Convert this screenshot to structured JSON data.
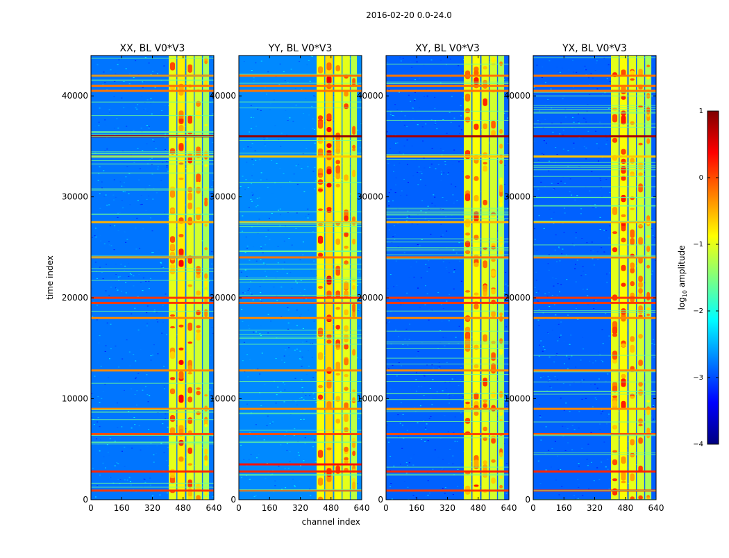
{
  "figure": {
    "suptitle": "2016-02-20 0.0-24.0",
    "colors": {
      "background": "#ffffff",
      "axis": "#000000",
      "cmap": [
        "#00007f",
        "#0000ff",
        "#007fff",
        "#00ffff",
        "#7fff7f",
        "#ffff00",
        "#ff7f00",
        "#ff0000",
        "#7f0000"
      ]
    }
  },
  "chart_data": [
    {
      "type": "heatmap",
      "title": "XX, BL V0*V3",
      "xlabel": "",
      "ylabel": "time index",
      "xlim": [
        0,
        640
      ],
      "ylim": [
        0,
        44000
      ],
      "xticks": [
        0,
        160,
        320,
        480,
        640
      ],
      "yticks": [
        0,
        10000,
        20000,
        30000,
        40000
      ],
      "background_level": -2.8,
      "bright_channel_bands": [
        [
          405,
          445,
          -1.0
        ],
        [
          450,
          490,
          -0.8
        ],
        [
          497,
          535,
          -1.0
        ],
        [
          540,
          578,
          -1.1
        ],
        [
          583,
          615,
          -1.3
        ]
      ],
      "flagged_time_rows": [
        [
          900,
          0.1
        ],
        [
          2800,
          0.2
        ],
        [
          6500,
          0.0
        ],
        [
          9000,
          -0.3
        ],
        [
          12800,
          -0.3
        ],
        [
          18000,
          -0.3
        ],
        [
          19500,
          0.1
        ],
        [
          20000,
          0.1
        ],
        [
          24000,
          -0.2
        ],
        [
          27500,
          -0.5
        ],
        [
          34000,
          -0.6
        ],
        [
          36000,
          0.8
        ],
        [
          40500,
          -0.2
        ],
        [
          41000,
          -0.2
        ],
        [
          42000,
          -0.2
        ]
      ]
    },
    {
      "type": "heatmap",
      "title": "YY, BL V0*V3",
      "xlabel": "channel index",
      "ylabel": "",
      "xlim": [
        0,
        640
      ],
      "ylim": [
        0,
        44000
      ],
      "xticks": [
        0,
        160,
        320,
        480,
        640
      ],
      "yticks": [
        0,
        10000,
        20000,
        30000,
        40000
      ],
      "background_level": -2.7,
      "bright_channel_bands": [
        [
          405,
          445,
          -0.9
        ],
        [
          450,
          490,
          -0.7
        ],
        [
          497,
          535,
          -0.9
        ],
        [
          540,
          578,
          -1.0
        ],
        [
          583,
          615,
          -1.2
        ]
      ],
      "flagged_time_rows": [
        [
          900,
          0.1
        ],
        [
          2800,
          0.2
        ],
        [
          3500,
          0.3
        ],
        [
          6500,
          0.0
        ],
        [
          9000,
          -0.3
        ],
        [
          12800,
          -0.3
        ],
        [
          18000,
          -0.3
        ],
        [
          19500,
          0.1
        ],
        [
          20000,
          0.1
        ],
        [
          24000,
          -0.2
        ],
        [
          27500,
          -0.5
        ],
        [
          34000,
          -0.6
        ],
        [
          36000,
          0.9
        ],
        [
          40500,
          -0.2
        ],
        [
          41000,
          -0.2
        ],
        [
          42000,
          -0.2
        ]
      ]
    },
    {
      "type": "heatmap",
      "title": "XY, BL V0*V3",
      "xlabel": "",
      "ylabel": "",
      "xlim": [
        0,
        640
      ],
      "ylim": [
        0,
        44000
      ],
      "xticks": [
        0,
        160,
        320,
        480,
        640
      ],
      "yticks": [
        0,
        10000,
        20000,
        30000,
        40000
      ],
      "background_level": -2.9,
      "bright_channel_bands": [
        [
          405,
          445,
          -1.0
        ],
        [
          450,
          490,
          -0.9
        ],
        [
          497,
          535,
          -1.0
        ],
        [
          540,
          578,
          -1.1
        ],
        [
          583,
          615,
          -1.3
        ]
      ],
      "flagged_time_rows": [
        [
          900,
          0.1
        ],
        [
          2800,
          0.2
        ],
        [
          6500,
          0.0
        ],
        [
          9000,
          -0.3
        ],
        [
          12800,
          -0.3
        ],
        [
          18000,
          -0.3
        ],
        [
          19500,
          0.1
        ],
        [
          20000,
          0.1
        ],
        [
          24000,
          -0.2
        ],
        [
          27500,
          -0.5
        ],
        [
          34000,
          -0.6
        ],
        [
          36000,
          0.8
        ],
        [
          40500,
          -0.2
        ],
        [
          41000,
          -0.2
        ],
        [
          42000,
          -0.2
        ]
      ]
    },
    {
      "type": "heatmap",
      "title": "YX, BL V0*V3",
      "xlabel": "",
      "ylabel": "",
      "xlim": [
        0,
        640
      ],
      "ylim": [
        0,
        44000
      ],
      "xticks": [
        0,
        160,
        320,
        480,
        640
      ],
      "yticks": [
        0,
        10000,
        20000,
        30000,
        40000
      ],
      "background_level": -2.9,
      "bright_channel_bands": [
        [
          405,
          445,
          -1.0
        ],
        [
          450,
          490,
          -0.9
        ],
        [
          497,
          535,
          -1.0
        ],
        [
          540,
          578,
          -1.1
        ],
        [
          583,
          615,
          -1.3
        ]
      ],
      "flagged_time_rows": [
        [
          900,
          0.1
        ],
        [
          2800,
          0.2
        ],
        [
          6500,
          0.0
        ],
        [
          9000,
          -0.3
        ],
        [
          12800,
          -0.3
        ],
        [
          18000,
          -0.3
        ],
        [
          19500,
          0.1
        ],
        [
          20000,
          0.1
        ],
        [
          24000,
          -0.2
        ],
        [
          27500,
          -0.5
        ],
        [
          34000,
          -0.6
        ],
        [
          36000,
          0.8
        ],
        [
          40500,
          -0.2
        ],
        [
          41000,
          -0.2
        ],
        [
          42000,
          -0.2
        ]
      ]
    }
  ],
  "colorbar": {
    "label": "log10 amplitude",
    "label_prefix": "log",
    "label_subscript": "10",
    "label_suffix": " amplitude",
    "range": [
      -4,
      1
    ],
    "ticks": [
      "1",
      "0",
      "−1",
      "−2",
      "−3",
      "−4"
    ],
    "tick_values": [
      1,
      0,
      -1,
      -2,
      -3,
      -4
    ]
  }
}
